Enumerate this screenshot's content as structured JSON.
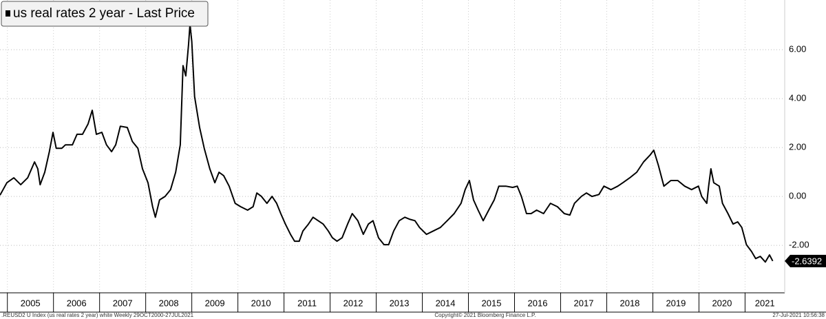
{
  "chart_data": {
    "type": "line",
    "legend": "us real rates 2 year - Last Price",
    "footer_left": ".REUSD2 U Index (us real rates 2 year) white  Weekly 29OCT2000-27JUL2021",
    "footer_center": "Copyright© 2021 Bloomberg Finance L.P.",
    "footer_right": "27-Jul-2021 10:56:38",
    "last_value": -2.6392,
    "color": "#000000",
    "grid": true,
    "xlim": [
      2004.84,
      2021.86
    ],
    "ylim": [
      -3.94,
      8.03
    ],
    "xticks": [
      2005,
      2006,
      2007,
      2008,
      2009,
      2010,
      2011,
      2012,
      2013,
      2014,
      2015,
      2016,
      2017,
      2018,
      2019,
      2020,
      2021
    ],
    "yticks": [
      {
        "value": -2,
        "label": "-2.00"
      },
      {
        "value": 0,
        "label": "0.00"
      },
      {
        "value": 2,
        "label": "2.00"
      },
      {
        "value": 4,
        "label": "4.00"
      },
      {
        "value": 6,
        "label": "6.00"
      }
    ],
    "series": [
      {
        "name": "us real rates 2 year",
        "color": "#000000",
        "x": [
          2004.84,
          2004.99,
          2005.14,
          2005.29,
          2005.44,
          2005.59,
          2005.66,
          2005.71,
          2005.81,
          2005.91,
          2005.99,
          2006.06,
          2006.18,
          2006.26,
          2006.41,
          2006.51,
          2006.63,
          2006.75,
          2006.84,
          2006.93,
          2007.05,
          2007.15,
          2007.26,
          2007.35,
          2007.45,
          2007.6,
          2007.71,
          2007.83,
          2007.93,
          2008.05,
          2008.15,
          2008.21,
          2008.3,
          2008.42,
          2008.54,
          2008.65,
          2008.75,
          2008.81,
          2008.87,
          2008.93,
          2008.96,
          2009.0,
          2009.06,
          2009.17,
          2009.27,
          2009.39,
          2009.5,
          2009.59,
          2009.69,
          2009.81,
          2009.94,
          2010.06,
          2010.21,
          2010.33,
          2010.41,
          2010.51,
          2010.63,
          2010.74,
          2010.84,
          2010.93,
          2011.03,
          2011.14,
          2011.23,
          2011.33,
          2011.41,
          2011.53,
          2011.63,
          2011.74,
          2011.85,
          2011.96,
          2012.05,
          2012.15,
          2012.26,
          2012.38,
          2012.48,
          2012.6,
          2012.72,
          2012.83,
          2012.93,
          2013.05,
          2013.17,
          2013.27,
          2013.38,
          2013.5,
          2013.62,
          2013.72,
          2013.84,
          2013.94,
          2014.09,
          2014.24,
          2014.39,
          2014.54,
          2014.69,
          2014.84,
          2014.93,
          2015.02,
          2015.11,
          2015.21,
          2015.32,
          2015.44,
          2015.56,
          2015.66,
          2015.81,
          2015.96,
          2016.06,
          2016.15,
          2016.26,
          2016.36,
          2016.48,
          2016.63,
          2016.78,
          2016.93,
          2017.08,
          2017.2,
          2017.3,
          2017.45,
          2017.56,
          2017.68,
          2017.83,
          2017.94,
          2018.09,
          2018.24,
          2018.35,
          2018.5,
          2018.65,
          2018.8,
          2018.94,
          2019.02,
          2019.12,
          2019.24,
          2019.39,
          2019.54,
          2019.69,
          2019.84,
          2019.99,
          2020.06,
          2020.17,
          2020.21,
          2020.26,
          2020.32,
          2020.44,
          2020.51,
          2020.63,
          2020.74,
          2020.84,
          2020.93,
          2021.03,
          2021.14,
          2021.23,
          2021.33,
          2021.44,
          2021.53,
          2021.6
        ],
        "values": [
          0.05,
          0.56,
          0.76,
          0.48,
          0.76,
          1.41,
          1.13,
          0.48,
          0.99,
          1.83,
          2.62,
          1.97,
          1.97,
          2.11,
          2.11,
          2.54,
          2.54,
          2.96,
          3.52,
          2.54,
          2.62,
          2.11,
          1.83,
          2.11,
          2.87,
          2.82,
          2.25,
          1.97,
          1.13,
          0.56,
          -0.42,
          -0.85,
          -0.14,
          0.0,
          0.28,
          0.99,
          2.11,
          5.35,
          4.93,
          6.2,
          7.04,
          6.34,
          4.08,
          2.82,
          1.97,
          1.13,
          0.56,
          0.99,
          0.85,
          0.42,
          -0.28,
          -0.42,
          -0.56,
          -0.42,
          0.14,
          0.0,
          -0.28,
          0.0,
          -0.28,
          -0.7,
          -1.13,
          -1.55,
          -1.83,
          -1.83,
          -1.41,
          -1.13,
          -0.85,
          -0.99,
          -1.13,
          -1.41,
          -1.69,
          -1.83,
          -1.69,
          -1.13,
          -0.7,
          -0.99,
          -1.55,
          -1.13,
          -0.99,
          -1.69,
          -1.97,
          -1.97,
          -1.41,
          -0.99,
          -0.85,
          -0.93,
          -0.99,
          -1.27,
          -1.55,
          -1.41,
          -1.27,
          -0.99,
          -0.7,
          -0.28,
          0.28,
          0.65,
          -0.14,
          -0.56,
          -0.99,
          -0.56,
          -0.14,
          0.42,
          0.42,
          0.37,
          0.42,
          0.0,
          -0.7,
          -0.7,
          -0.56,
          -0.7,
          -0.28,
          -0.42,
          -0.7,
          -0.76,
          -0.28,
          0.0,
          0.14,
          0.0,
          0.08,
          0.42,
          0.28,
          0.42,
          0.56,
          0.76,
          0.99,
          1.41,
          1.69,
          1.89,
          1.27,
          0.42,
          0.65,
          0.65,
          0.42,
          0.28,
          0.42,
          0.0,
          -0.28,
          0.42,
          1.13,
          0.56,
          0.42,
          -0.28,
          -0.7,
          -1.13,
          -1.04,
          -1.27,
          -1.97,
          -2.25,
          -2.54,
          -2.45,
          -2.68,
          -2.39,
          -2.6392
        ]
      }
    ]
  }
}
